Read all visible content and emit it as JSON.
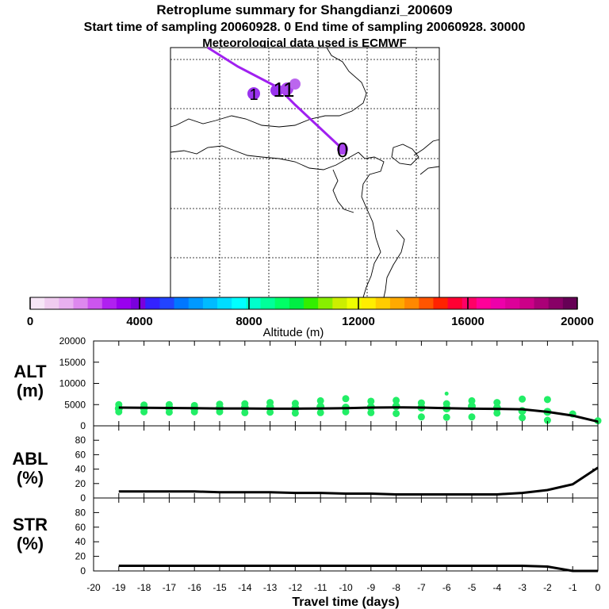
{
  "header": {
    "title": "Retroplume summary for Shangdianzi_200609",
    "subtitle": "Start time of sampling 20060928.    0     End time of sampling 20060928. 30000",
    "met_note": "Meteorological data used is ECMWF"
  },
  "colors": {
    "trajectory": "#a020f0",
    "plume_point": "#22ee66",
    "line": "#000000"
  },
  "chart_data": [
    {
      "type": "map",
      "panel": "trajectory-map",
      "trajectory_labels": [
        "1",
        "11",
        "0"
      ],
      "trajectory_label_sizes": [
        "small",
        "large",
        "large"
      ]
    },
    {
      "type": "colorbar",
      "label": "Altitude (m)",
      "min": 0,
      "max": 20000,
      "tick_labels": [
        "0",
        "4000",
        "8000",
        "12000",
        "16000",
        "20000"
      ],
      "tick_values": [
        0,
        4000,
        8000,
        12000,
        16000,
        20000
      ],
      "colors": [
        "#f7e6f7",
        "#f0ccf0",
        "#e8b0f0",
        "#dd88ee",
        "#cc55ee",
        "#b020f0",
        "#9900ee",
        "#7a00dd",
        "#3322ff",
        "#2244ff",
        "#0077ff",
        "#0099ff",
        "#00bbff",
        "#00ddff",
        "#00ffff",
        "#00ffcc",
        "#00ff99",
        "#00ff66",
        "#00ee44",
        "#33ee00",
        "#88ee00",
        "#ccee00",
        "#eeff00",
        "#ffee00",
        "#ffcc00",
        "#ffaa00",
        "#ff8800",
        "#ff5500",
        "#ff2200",
        "#ff0033",
        "#ff0066",
        "#ff0099",
        "#ee00aa",
        "#dd0099",
        "#cc0088",
        "#aa0077",
        "#880066",
        "#660055"
      ]
    },
    {
      "type": "line",
      "panel": "altitude",
      "ylabel": "ALT\n(m)",
      "ylabel_lines": [
        "ALT",
        "(m)"
      ],
      "ylim": [
        0,
        20000
      ],
      "yticks": [
        0,
        5000,
        10000,
        15000,
        20000
      ],
      "ytick_labels": [
        "0",
        "5000",
        "10000",
        "15000",
        "20000"
      ],
      "x": [
        -19,
        -18,
        -17,
        -16,
        -15,
        -14,
        -13,
        -12,
        -11,
        -10,
        -9,
        -8,
        -7,
        -6,
        -5,
        -4,
        -3,
        -2,
        -1,
        0
      ],
      "series": [
        {
          "name": "mean altitude",
          "values": [
            4300,
            4250,
            4200,
            4150,
            4100,
            4100,
            4050,
            4050,
            4100,
            4150,
            4300,
            4350,
            4300,
            4150,
            4050,
            4000,
            3900,
            3300,
            2400,
            1000
          ]
        }
      ],
      "plume_points": [
        {
          "x": -19,
          "alt": [
            3300,
            4100,
            5000
          ]
        },
        {
          "x": -18,
          "alt": [
            3300,
            4200,
            4900
          ]
        },
        {
          "x": -17,
          "alt": [
            3200,
            4200,
            5000
          ]
        },
        {
          "x": -16,
          "alt": [
            3300,
            4100,
            4800
          ]
        },
        {
          "x": -15,
          "alt": [
            3300,
            4200,
            5100
          ]
        },
        {
          "x": -14,
          "alt": [
            3100,
            4300,
            5200
          ]
        },
        {
          "x": -13,
          "alt": [
            3200,
            4400,
            5500
          ]
        },
        {
          "x": -12,
          "alt": [
            3000,
            4200,
            5300
          ]
        },
        {
          "x": -11,
          "alt": [
            3100,
            4500,
            5900
          ]
        },
        {
          "x": -10,
          "alt": [
            3300,
            4300,
            6400
          ]
        },
        {
          "x": -9,
          "alt": [
            3100,
            4400,
            5800
          ]
        },
        {
          "x": -8,
          "alt": [
            2900,
            4600,
            6000
          ]
        },
        {
          "x": -7,
          "alt": [
            2100,
            4300,
            5400
          ]
        },
        {
          "x": -6,
          "alt": [
            2000,
            4100,
            5200,
            7600
          ]
        },
        {
          "x": -5,
          "alt": [
            2100,
            4600,
            5900
          ]
        },
        {
          "x": -4,
          "alt": [
            3000,
            4200,
            5500
          ]
        },
        {
          "x": -3,
          "alt": [
            1900,
            3500,
            6300
          ]
        },
        {
          "x": -2,
          "alt": [
            1300,
            3300,
            6200
          ]
        },
        {
          "x": -1,
          "alt": [
            2800
          ]
        },
        {
          "x": 0,
          "alt": [
            1200
          ]
        }
      ]
    },
    {
      "type": "line",
      "panel": "abl",
      "ylabel": "ABL\n(%)",
      "ylabel_lines": [
        "ABL",
        "(%)"
      ],
      "ylim": [
        0,
        100
      ],
      "yticks": [
        0,
        20,
        40,
        60,
        80
      ],
      "ytick_labels": [
        "0",
        "20",
        "40",
        "60",
        "80"
      ],
      "x": [
        -19,
        -18,
        -17,
        -16,
        -15,
        -14,
        -13,
        -12,
        -11,
        -10,
        -9,
        -8,
        -7,
        -6,
        -5,
        -4,
        -3,
        -2,
        -1,
        0
      ],
      "series": [
        {
          "name": "ABL fraction",
          "values": [
            9,
            9,
            9,
            9,
            8,
            8,
            8,
            7,
            7,
            6,
            6,
            5,
            5,
            5,
            5,
            5,
            7,
            11,
            19,
            42
          ]
        }
      ]
    },
    {
      "type": "line",
      "panel": "str",
      "ylabel": "STR\n(%)",
      "ylabel_lines": [
        "STR",
        "(%)"
      ],
      "ylim": [
        0,
        100
      ],
      "yticks": [
        0,
        20,
        40,
        60,
        80
      ],
      "ytick_labels": [
        "0",
        "20",
        "40",
        "60",
        "80"
      ],
      "xlabel": "Travel time (days)",
      "xlim": [
        -20,
        0
      ],
      "xticks": [
        -20,
        -19,
        -18,
        -17,
        -16,
        -15,
        -14,
        -13,
        -12,
        -11,
        -10,
        -9,
        -8,
        -7,
        -6,
        -5,
        -4,
        -3,
        -2,
        -1,
        0
      ],
      "xtick_labels": [
        "-20",
        "-19",
        "-18",
        "-17",
        "-16",
        "-15",
        "-14",
        "-13",
        "-12",
        "-11",
        "-10",
        "-9",
        "-8",
        "-7",
        "-6",
        "-5",
        "-4",
        "-3",
        "-2",
        "-1",
        "0"
      ],
      "x": [
        -19,
        -18,
        -17,
        -16,
        -15,
        -14,
        -13,
        -12,
        -11,
        -10,
        -9,
        -8,
        -7,
        -6,
        -5,
        -4,
        -3,
        -2,
        -1,
        0
      ],
      "series": [
        {
          "name": "STR fraction",
          "values": [
            7,
            7,
            7,
            7,
            7,
            7,
            7,
            7,
            7,
            7,
            7,
            7,
            7,
            7,
            7,
            7,
            7,
            6,
            0,
            0
          ]
        }
      ]
    }
  ]
}
